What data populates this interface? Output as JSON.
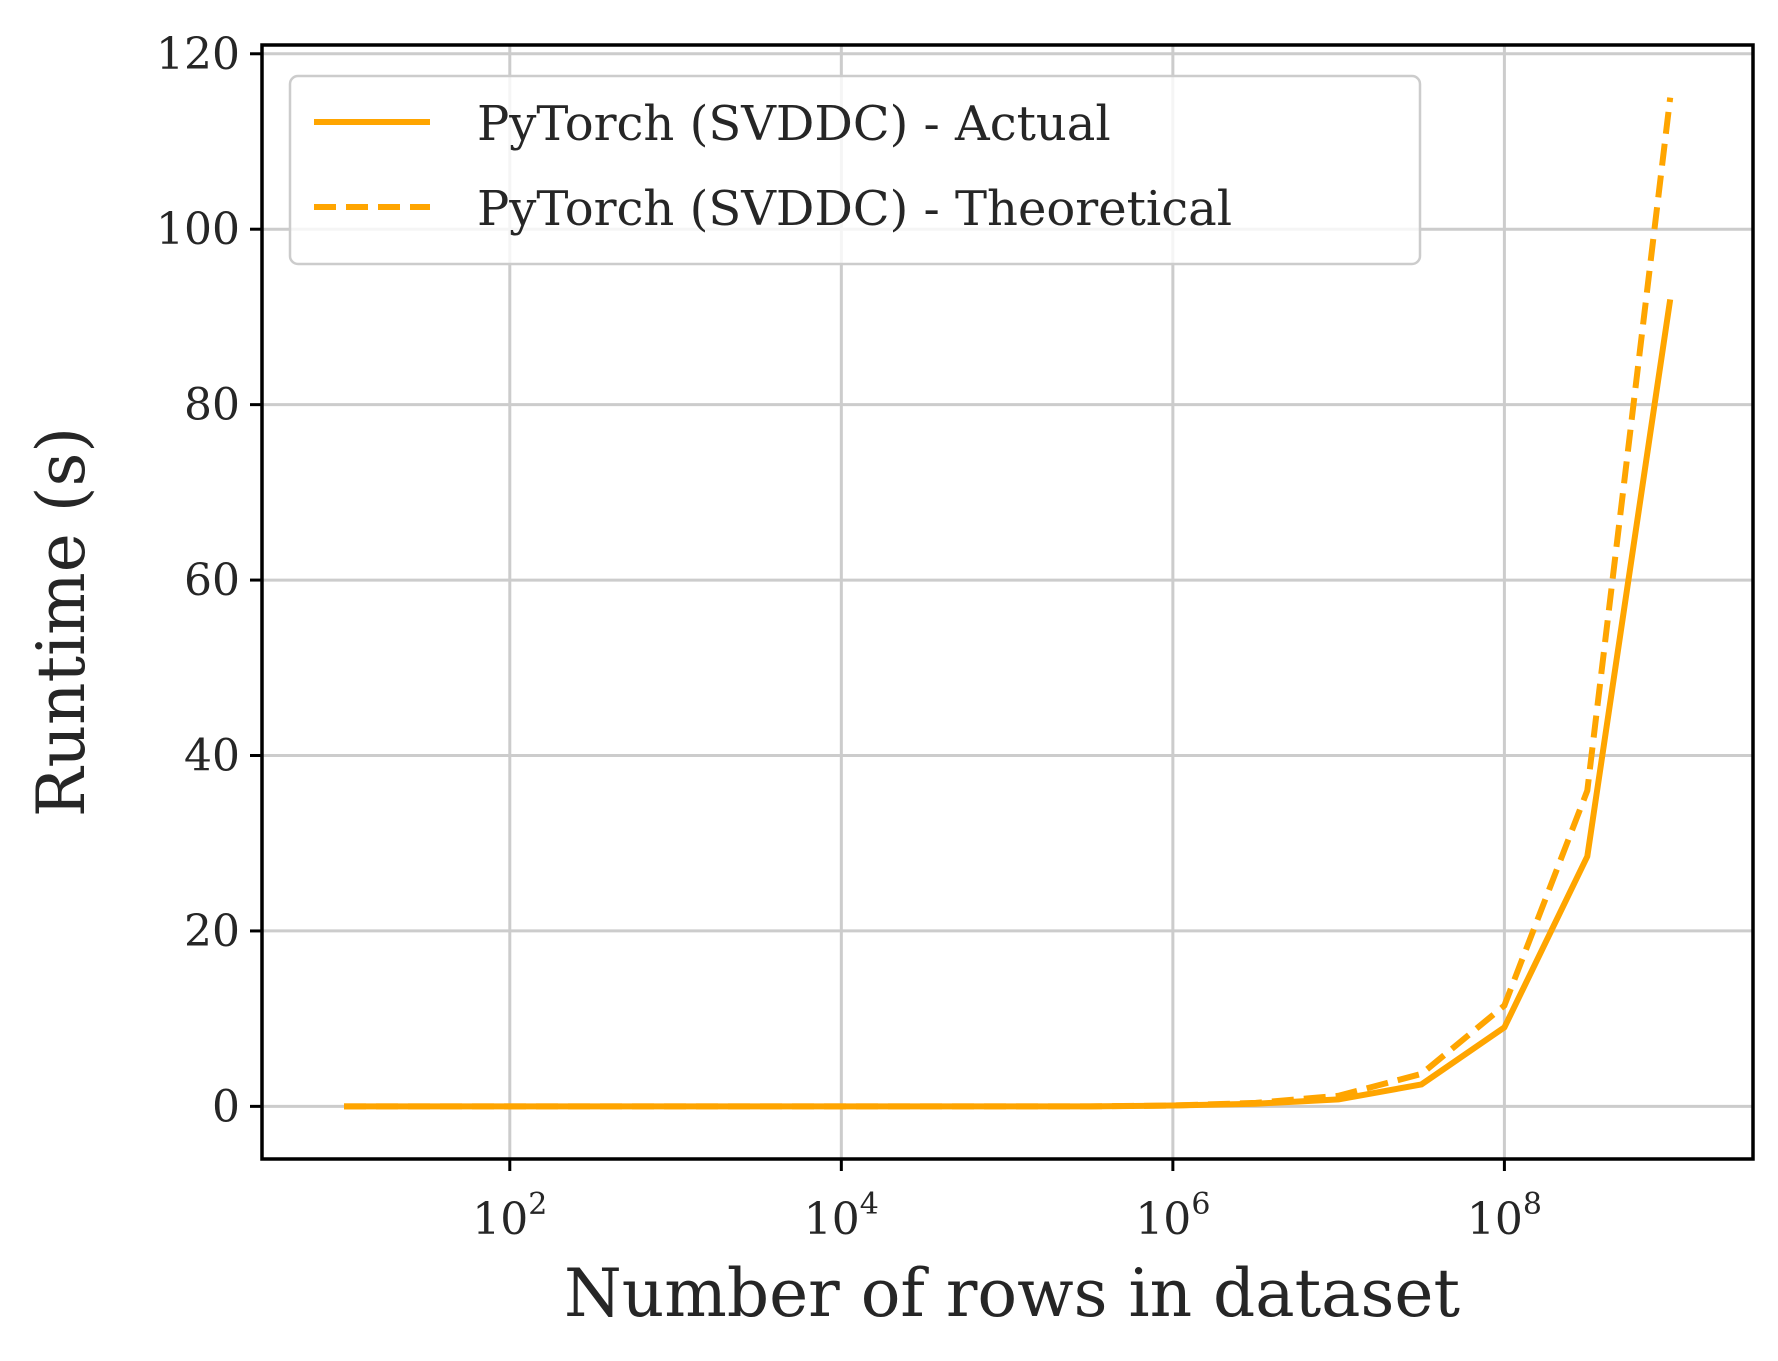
{
  "colors": {
    "series": "#ffa500",
    "grid": "#cccccc",
    "axes": "#000000",
    "text": "#262626",
    "background": "#ffffff"
  },
  "chart_data": {
    "type": "line",
    "title": "",
    "xlabel": "Number of rows in dataset",
    "ylabel": "Runtime (s)",
    "xscale": "log",
    "xlim": [
      3.2,
      3160000000.0
    ],
    "ylim": [
      -6,
      121
    ],
    "grid": true,
    "legend_position": "top-left",
    "x_ticks": [
      {
        "value": 100,
        "base": "10",
        "exp": "2"
      },
      {
        "value": 10000,
        "base": "10",
        "exp": "4"
      },
      {
        "value": 1000000,
        "base": "10",
        "exp": "6"
      },
      {
        "value": 100000000,
        "base": "10",
        "exp": "8"
      }
    ],
    "y_ticks": [
      0,
      20,
      40,
      60,
      80,
      100,
      120
    ],
    "x": [
      10,
      31.6,
      100,
      316,
      1000,
      3162,
      10000,
      31623,
      100000,
      316228,
      1000000,
      3162278,
      10000000,
      31622777,
      100000000,
      316227766,
      1000000000
    ],
    "series": [
      {
        "name": "PyTorch (SVDDC) - Actual",
        "style": "solid",
        "values": [
          0,
          0,
          0,
          0,
          0,
          0,
          0,
          0,
          0,
          0,
          0.1,
          0.3,
          0.8,
          2.5,
          9,
          28.5,
          92
        ]
      },
      {
        "name": "PyTorch (SVDDC) - Theoretical",
        "style": "dashed",
        "values": [
          0,
          0,
          0,
          0,
          0,
          0,
          0,
          0,
          0,
          0,
          0.1,
          0.4,
          1.2,
          3.7,
          11.5,
          36,
          115
        ]
      }
    ]
  }
}
